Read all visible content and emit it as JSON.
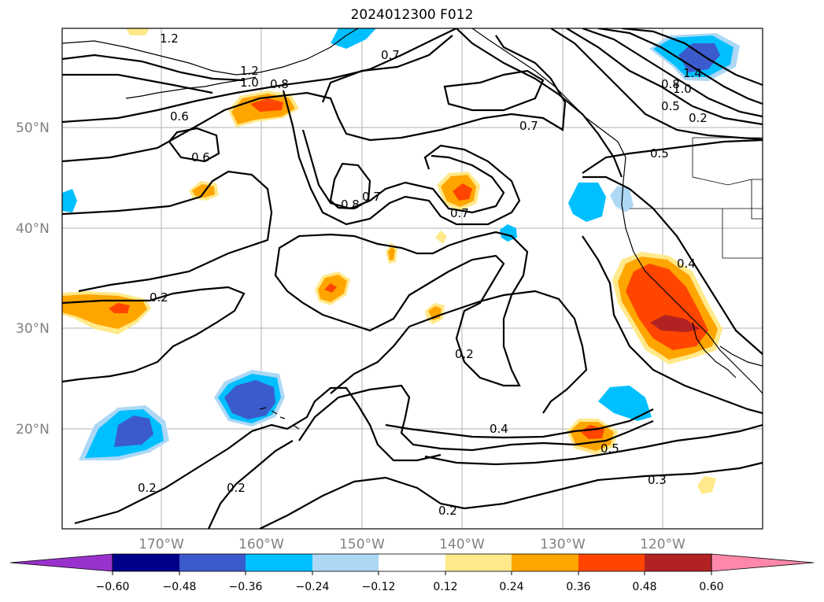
{
  "title": "2024012300 F012",
  "lat_labels": [
    "50°N",
    "40°N",
    "30°N",
    "20°N"
  ],
  "lon_labels": [
    "170°W",
    "160°W",
    "150°W",
    "140°W",
    "130°W",
    "120°W"
  ],
  "colorbar": {
    "colors": [
      "#9932cc",
      "#00008b",
      "#3b5bcc",
      "#00bfff",
      "#add8f5",
      "#ffffff",
      "#ffe98a",
      "#ffa500",
      "#ff4500",
      "#b22222",
      "#ff88aa"
    ],
    "tick_labels": [
      "−0.60",
      "−0.48",
      "−0.36",
      "−0.24",
      "−0.12",
      "0.12",
      "0.24",
      "0.36",
      "0.48",
      "0.60"
    ]
  },
  "contour_labels": [
    {
      "text": "1.2"
    },
    {
      "text": "1.2"
    },
    {
      "text": "1.0"
    },
    {
      "text": "0.8"
    },
    {
      "text": "0.7"
    },
    {
      "text": "0.6"
    },
    {
      "text": "0.6"
    },
    {
      "text": "0.7"
    },
    {
      "text": "0.8"
    },
    {
      "text": "0.7"
    },
    {
      "text": "0.7"
    },
    {
      "text": "0.5"
    },
    {
      "text": "0.4"
    },
    {
      "text": "0.2"
    },
    {
      "text": "0.2"
    },
    {
      "text": "0.4"
    },
    {
      "text": "0.5"
    },
    {
      "text": "0.3"
    },
    {
      "text": "0.2"
    },
    {
      "text": "0.2"
    },
    {
      "text": "0.2"
    },
    {
      "text": "1.4"
    },
    {
      "text": "1.0"
    },
    {
      "text": "0.8"
    },
    {
      "text": "0.5"
    },
    {
      "text": "0.2"
    }
  ]
}
